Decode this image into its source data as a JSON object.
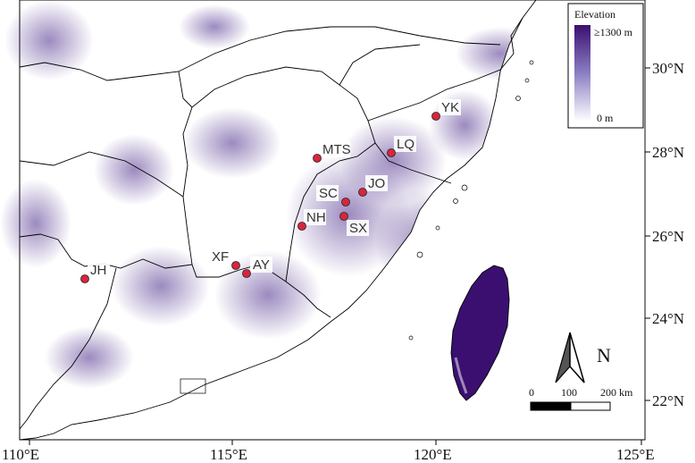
{
  "legend": {
    "title": "Elevation",
    "max_label": "≥1300 m",
    "min_label": "0 m",
    "color_high": "#3b0f70",
    "color_low": "#ffffff"
  },
  "axes": {
    "lon_ticks": [
      "110°E",
      "115°E",
      "120°E",
      "125°E"
    ],
    "lat_ticks": [
      "30°N",
      "28°N",
      "26°N",
      "24°N",
      "22°N"
    ]
  },
  "sites": [
    {
      "code": "YK"
    },
    {
      "code": "LQ"
    },
    {
      "code": "MTS"
    },
    {
      "code": "JO"
    },
    {
      "code": "SC"
    },
    {
      "code": "NH"
    },
    {
      "code": "SX"
    },
    {
      "code": "XF"
    },
    {
      "code": "AY"
    },
    {
      "code": "JH"
    }
  ],
  "north_arrow": {
    "label": "N"
  },
  "scale_bar": {
    "labels": [
      "0",
      "100",
      "200 km"
    ]
  },
  "colors": {
    "site_marker": "#d7263d",
    "border": "#000000",
    "relief": "#4a2a8a"
  }
}
